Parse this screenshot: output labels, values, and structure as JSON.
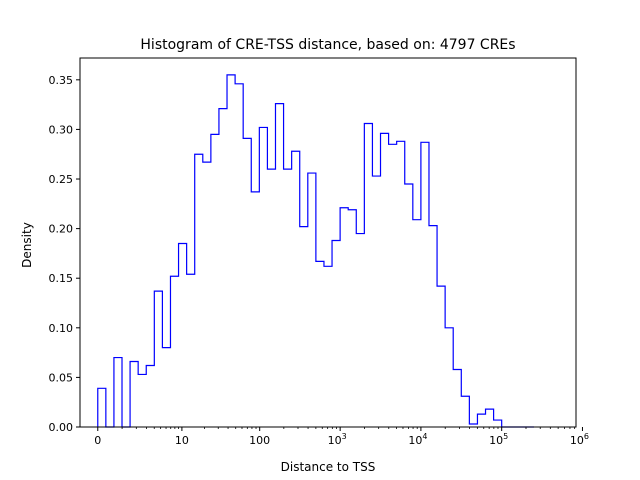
{
  "chart_data": {
    "type": "histogram",
    "title": "Histogram of CRE-TSS distance, based on: 4797 CREs",
    "xlabel": "Distance to TSS",
    "ylabel": "Density",
    "xlim": [
      -0.22,
      5.92
    ],
    "ylim": [
      0,
      0.372
    ],
    "x_scale": "symlog",
    "x_ticks": [
      {
        "value": 0,
        "label": "0"
      },
      {
        "value": 10,
        "label": "10"
      },
      {
        "value": 100,
        "label": "100"
      },
      {
        "value": 1000,
        "label": "10",
        "exp": "3"
      },
      {
        "value": 10000,
        "label": "10",
        "exp": "4"
      },
      {
        "value": 100000,
        "label": "10",
        "exp": "5"
      },
      {
        "value": 1000000,
        "label": "10",
        "exp": "6"
      }
    ],
    "y_ticks": [
      "0.00",
      "0.05",
      "0.10",
      "0.15",
      "0.20",
      "0.25",
      "0.30",
      "0.35"
    ],
    "y_tick_values": [
      0,
      0.05,
      0.1,
      0.15,
      0.2,
      0.25,
      0.3,
      0.35
    ],
    "bin_edges_log10_1p": [
      0,
      0.1,
      0.2,
      0.3,
      0.4,
      0.5,
      0.6,
      0.7,
      0.8,
      0.9,
      1.0,
      1.1,
      1.2,
      1.3,
      1.4,
      1.5,
      1.6,
      1.7,
      1.8,
      1.9,
      2.0,
      2.1,
      2.2,
      2.3,
      2.4,
      2.5,
      2.6,
      2.7,
      2.8,
      2.9,
      3.0,
      3.1,
      3.2,
      3.3,
      3.4,
      3.5,
      3.6,
      3.7,
      3.8,
      3.9,
      4.0,
      4.1,
      4.2,
      4.3,
      4.4,
      4.5,
      4.6,
      4.7,
      4.8,
      4.9,
      5.0,
      5.1,
      5.2,
      5.3,
      5.4
    ],
    "density": [
      0.039,
      0,
      0.07,
      0,
      0.066,
      0.053,
      0.062,
      0.137,
      0.08,
      0.152,
      0.185,
      0.154,
      0.275,
      0.267,
      0.295,
      0.321,
      0.355,
      0.346,
      0.291,
      0.237,
      0.302,
      0.26,
      0.326,
      0.26,
      0.278,
      0.202,
      0.256,
      0.167,
      0.162,
      0.188,
      0.221,
      0.219,
      0.195,
      0.306,
      0.253,
      0.296,
      0.285,
      0.288,
      0.245,
      0.209,
      0.287,
      0.203,
      0.142,
      0.1,
      0.058,
      0.031,
      0.003,
      0.013,
      0.018,
      0.007,
      0,
      0,
      0,
      0
    ],
    "color": "#0000ff",
    "grid": false,
    "legend": "none"
  }
}
